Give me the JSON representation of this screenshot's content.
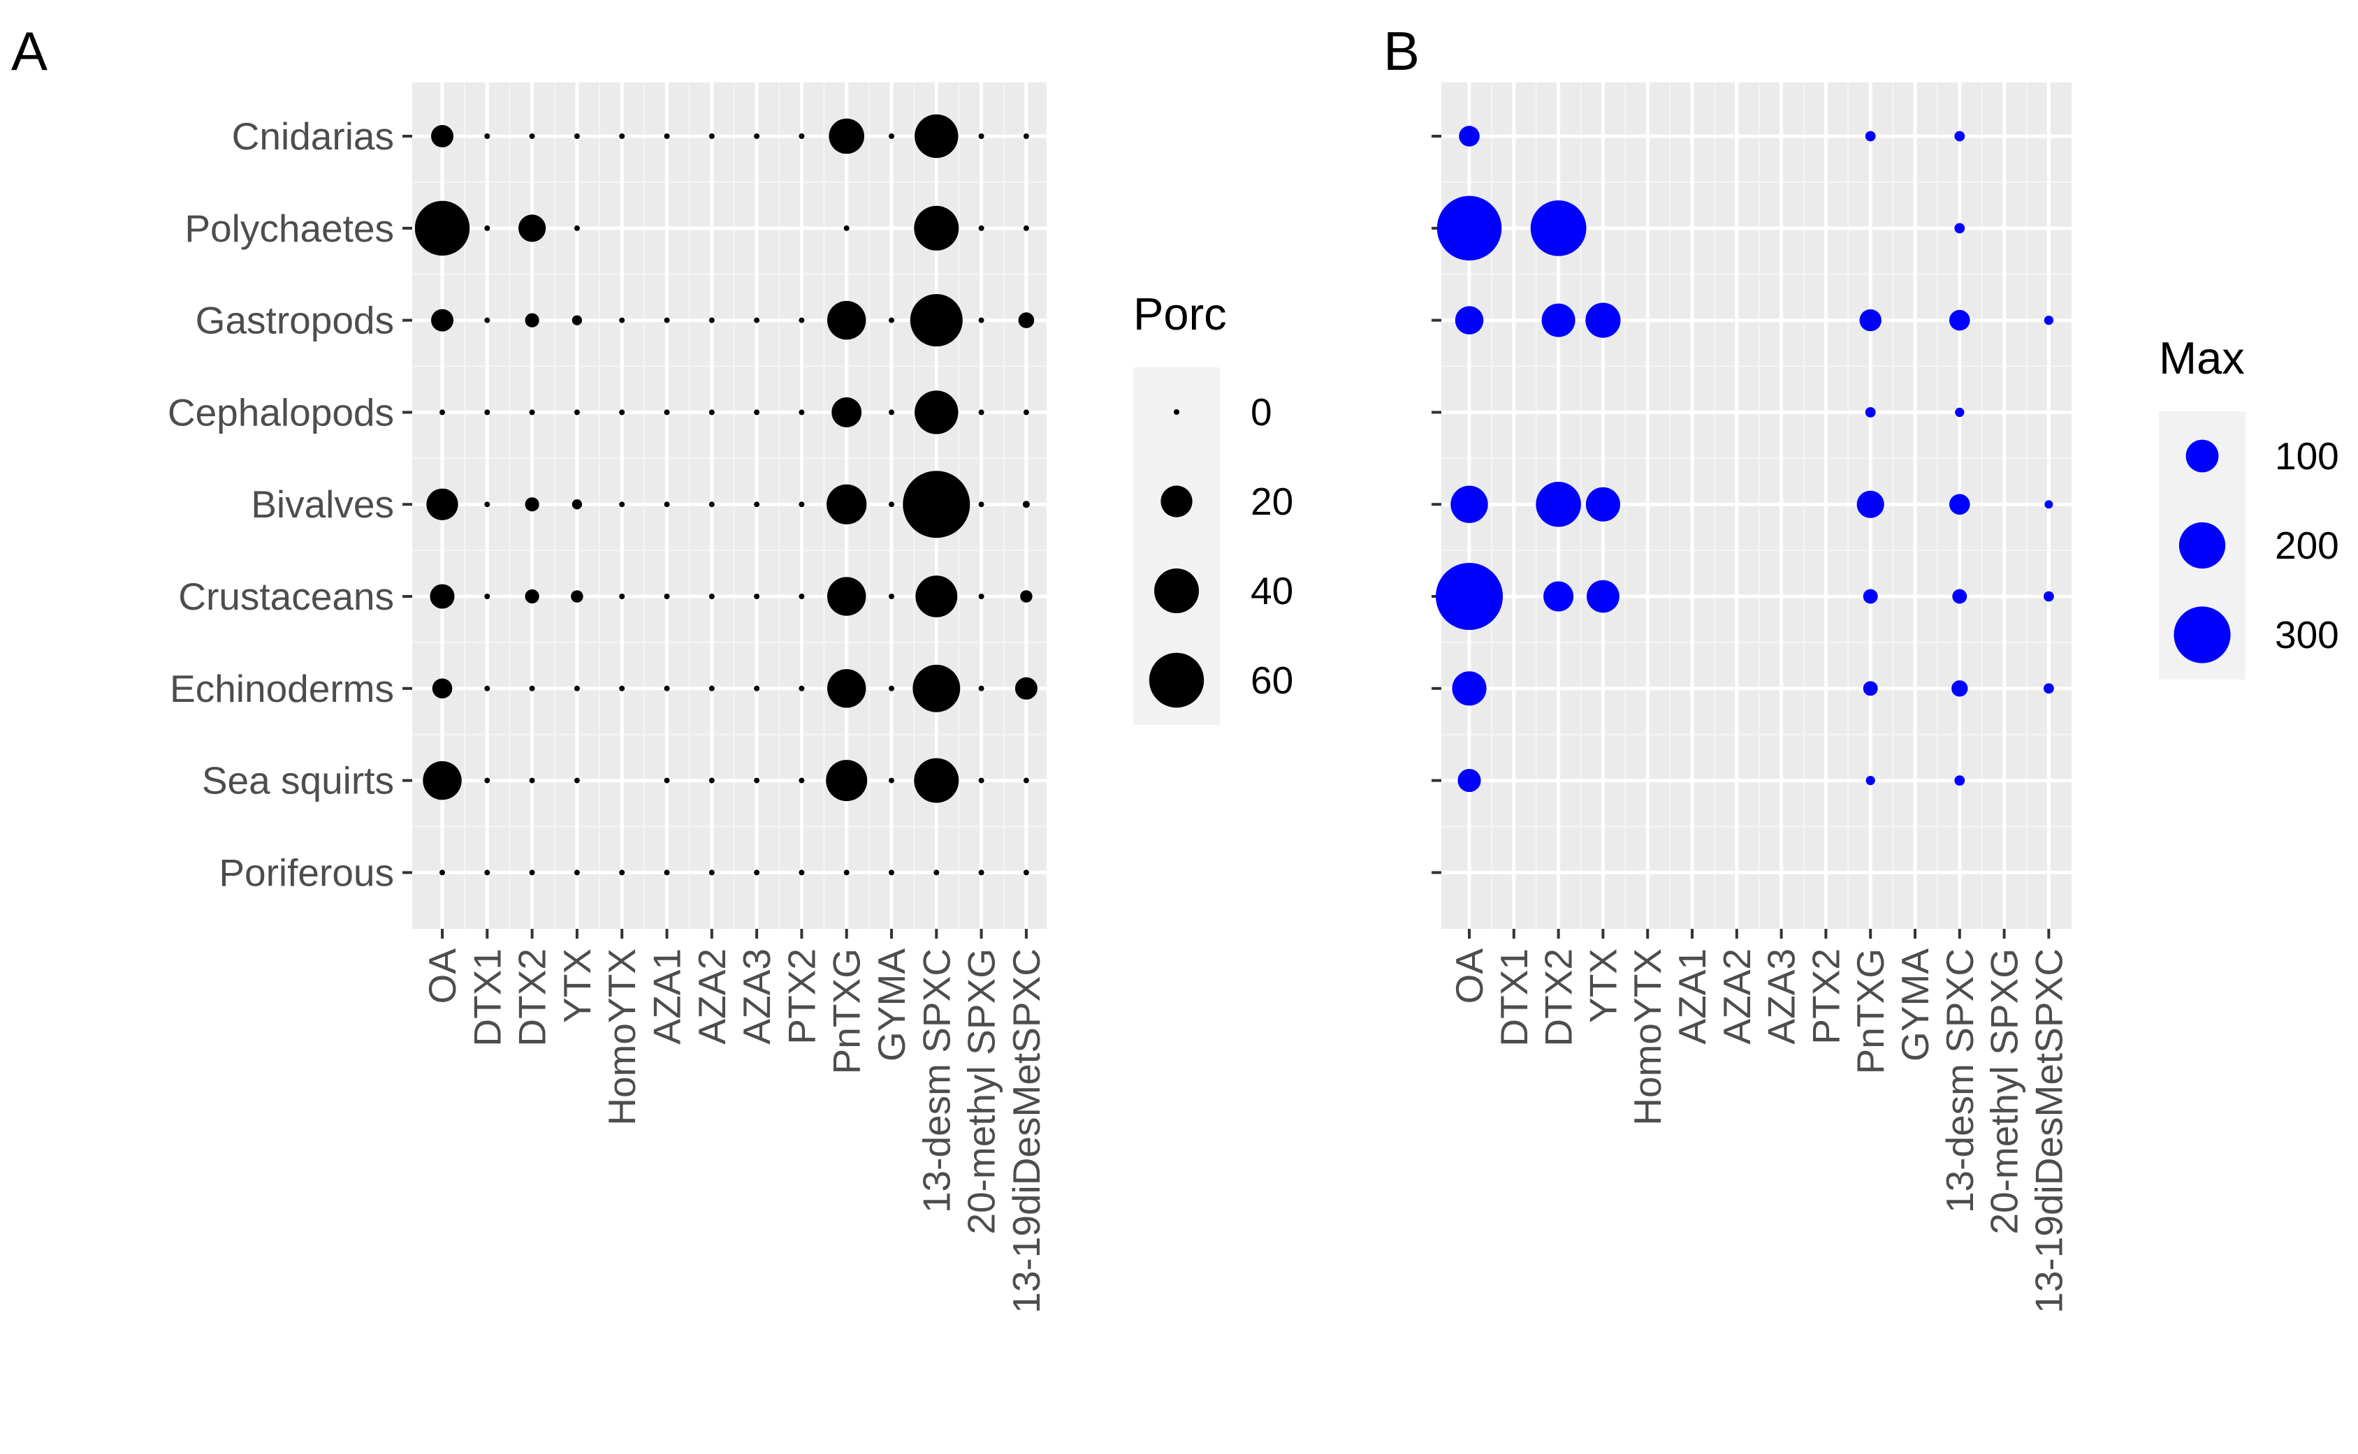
{
  "figure": {
    "panels": [
      "A",
      "B"
    ]
  },
  "chart_data": [
    {
      "type": "scatter",
      "subtype": "bubble-matrix",
      "panel": "A",
      "color": "#000000",
      "background": "#ebebeb",
      "rows": [
        "Cnidarias",
        "Polychaetes",
        "Gastropods",
        "Cephalopods",
        "Bivalves",
        "Crustaceans",
        "Echinoderms",
        "Sea squirts",
        "Poriferous"
      ],
      "columns": [
        "OA",
        "DTX1",
        "DTX2",
        "YTX",
        "HomoYTX",
        "AZA1",
        "AZA2",
        "AZA3",
        "PTX2",
        "PnTXG",
        "GYMA",
        "13-desm SPXC",
        "20-methyl SPXG",
        "13-19diDesMetSPXC"
      ],
      "values": [
        [
          10,
          0,
          0,
          0,
          0,
          0,
          0,
          0,
          0,
          25,
          0,
          38,
          0,
          0
        ],
        [
          60,
          0,
          15,
          0,
          null,
          null,
          null,
          null,
          null,
          0,
          null,
          40,
          0,
          0
        ],
        [
          10,
          0,
          4,
          2,
          0,
          0,
          0,
          0,
          0,
          30,
          0,
          55,
          0,
          5
        ],
        [
          0,
          0,
          0,
          0,
          0,
          0,
          0,
          0,
          0,
          18,
          0,
          38,
          0,
          0
        ],
        [
          20,
          0,
          4,
          2,
          0,
          0,
          0,
          0,
          0,
          32,
          0,
          90,
          0,
          1
        ],
        [
          12,
          0,
          4,
          3,
          0,
          0,
          0,
          0,
          0,
          30,
          0,
          35,
          0,
          3
        ],
        [
          8,
          0,
          0,
          0,
          0,
          0,
          0,
          0,
          0,
          30,
          0,
          45,
          0,
          10
        ],
        [
          30,
          0,
          0,
          0,
          null,
          0,
          0,
          0,
          0,
          34,
          0,
          40,
          0,
          0
        ],
        [
          0,
          0,
          0,
          0,
          0,
          0,
          0,
          0,
          0,
          0,
          0,
          0,
          0,
          0
        ]
      ],
      "legend": {
        "title": "Porc",
        "breaks": [
          0,
          20,
          40,
          60
        ],
        "labels": [
          "0",
          "20",
          "40",
          "60"
        ],
        "position": "right"
      }
    },
    {
      "type": "scatter",
      "subtype": "bubble-matrix",
      "panel": "B",
      "color": "#0000ff",
      "background": "#ebebeb",
      "rows": [
        "Cnidarias",
        "Polychaetes",
        "Gastropods",
        "Cephalopods",
        "Bivalves",
        "Crustaceans",
        "Echinoderms",
        "Sea squirts",
        "Poriferous"
      ],
      "columns": [
        "OA",
        "DTX1",
        "DTX2",
        "YTX",
        "HomoYTX",
        "AZA1",
        "AZA2",
        "AZA3",
        "PTX2",
        "PnTXG",
        "GYMA",
        "13-desm SPXC",
        "20-methyl SPXG",
        "13-19diDesMetSPXC"
      ],
      "values": [
        [
          40,
          null,
          null,
          null,
          null,
          null,
          null,
          null,
          null,
          10,
          null,
          10,
          null,
          null
        ],
        [
          390,
          null,
          290,
          null,
          null,
          null,
          null,
          null,
          null,
          null,
          null,
          10,
          null,
          null
        ],
        [
          75,
          null,
          105,
          115,
          null,
          null,
          null,
          null,
          null,
          45,
          null,
          40,
          null,
          8
        ],
        [
          null,
          null,
          null,
          null,
          null,
          null,
          null,
          null,
          null,
          10,
          null,
          8,
          null,
          null
        ],
        [
          130,
          null,
          190,
          110,
          null,
          null,
          null,
          null,
          null,
          70,
          null,
          40,
          null,
          4
        ],
        [
          420,
          null,
          85,
          100,
          null,
          null,
          null,
          null,
          null,
          20,
          null,
          20,
          null,
          10
        ],
        [
          110,
          null,
          null,
          null,
          null,
          null,
          null,
          null,
          null,
          20,
          null,
          25,
          null,
          10
        ],
        [
          50,
          null,
          null,
          null,
          null,
          null,
          null,
          null,
          null,
          8,
          null,
          10,
          null,
          null
        ],
        [
          null,
          null,
          null,
          null,
          null,
          null,
          null,
          null,
          null,
          null,
          null,
          null,
          null,
          null
        ]
      ],
      "legend": {
        "title": "Max",
        "breaks": [
          100,
          200,
          300
        ],
        "labels": [
          "100",
          "200",
          "300"
        ],
        "position": "right"
      }
    }
  ]
}
